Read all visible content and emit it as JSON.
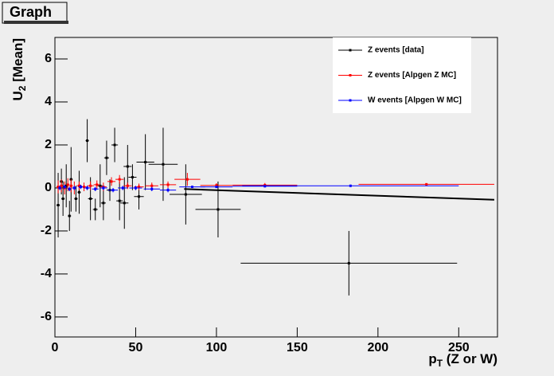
{
  "chart_data": {
    "type": "errorbar-scatter",
    "title": "Graph",
    "xlabel": {
      "main": "p",
      "sub": "T",
      "rest": " (Z or W)"
    },
    "ylabel": {
      "main": "U",
      "sub": "2",
      "rest": " [Mean]"
    },
    "xlim": [
      0,
      274
    ],
    "ylim": [
      -6.93,
      7
    ],
    "xticks": [
      0,
      50,
      100,
      150,
      200,
      250
    ],
    "yticks": [
      -6,
      -4,
      -2,
      0,
      2,
      4,
      6
    ],
    "series": [
      {
        "name": "Z events [data]",
        "color": "#000000",
        "x": [
          2,
          4,
          5,
          7,
          9,
          10,
          13,
          15,
          20,
          22,
          25,
          28,
          30,
          32,
          34,
          37,
          40,
          43,
          45,
          48,
          52,
          56,
          67,
          81,
          101,
          182
        ],
        "values": [
          -0.8,
          0.3,
          -0.5,
          0.1,
          -1.3,
          0.4,
          -0.5,
          -0.2,
          2.2,
          -0.5,
          -1,
          0.1,
          -0.7,
          1.4,
          -0.1,
          2,
          -0.6,
          -0.7,
          1,
          0.5,
          -0.4,
          1.2,
          1.1,
          -0.3,
          -1,
          -3.5
        ],
        "xerr": [
          1,
          1,
          1,
          1,
          1,
          1,
          1,
          1,
          1,
          1.5,
          1.5,
          1.5,
          1.5,
          1.5,
          2,
          2,
          2,
          2.5,
          2.5,
          2.5,
          3,
          5.5,
          9,
          10,
          14,
          67
        ],
        "yerr": [
          1.5,
          0.6,
          0.8,
          1,
          0.7,
          1.5,
          0.6,
          1,
          1,
          1,
          0.5,
          1,
          0.8,
          0.8,
          0.5,
          0.8,
          0.9,
          1.2,
          1,
          0.6,
          0.6,
          1.3,
          1.7,
          1.4,
          1.3,
          1.5
        ]
      },
      {
        "name": "Z events [Alpgen Z MC]",
        "color": "#ff0000",
        "x": [
          2,
          4,
          6,
          8,
          10,
          12,
          15,
          18,
          22,
          26,
          30,
          35,
          40,
          45,
          52,
          60,
          70,
          82,
          100,
          130,
          230
        ],
        "values": [
          0.05,
          0.1,
          0.0,
          0.15,
          0.1,
          0.0,
          0.1,
          0.05,
          0.1,
          0.15,
          0.05,
          0.3,
          0.4,
          0.1,
          0.05,
          0.1,
          0.15,
          0.4,
          0.12,
          0.13,
          0.17
        ],
        "xerr": [
          1,
          1,
          1,
          1,
          1,
          1,
          1.5,
          1.5,
          2,
          2,
          2,
          2.5,
          2.5,
          2.5,
          3,
          4,
          5,
          8,
          10,
          20,
          42
        ],
        "yerr": [
          0.3,
          0.3,
          0.3,
          0.3,
          0.3,
          0.3,
          0.2,
          0.2,
          0.2,
          0.2,
          0.2,
          0.2,
          0.2,
          0.15,
          0.15,
          0.15,
          0.15,
          0.3,
          0.1,
          0.1,
          0.05
        ]
      },
      {
        "name": "W events [Alpgen W MC]",
        "color": "#0000ff",
        "x": [
          3,
          6,
          9,
          12,
          16,
          20,
          25,
          30,
          36,
          42,
          50,
          60,
          70,
          85,
          100,
          130,
          183
        ],
        "values": [
          0.0,
          0.05,
          -0.05,
          0.0,
          0.05,
          0.0,
          -0.05,
          0.0,
          -0.1,
          0.0,
          0.0,
          -0.05,
          -0.1,
          0.05,
          0.05,
          0.08,
          0.1
        ],
        "xerr": [
          1,
          1,
          1,
          1.5,
          1.5,
          2,
          2,
          2.5,
          3,
          3,
          4,
          5,
          5,
          8,
          10,
          20,
          67
        ],
        "yerr": [
          0.1,
          0.1,
          0.1,
          0.1,
          0.1,
          0.1,
          0.1,
          0.1,
          0.1,
          0.1,
          0.1,
          0.1,
          0.1,
          0.05,
          0.05,
          0.05,
          0.05
        ]
      }
    ],
    "lines": [
      {
        "color": "#000000",
        "x": [
          80,
          272
        ],
        "values": [
          -0.05,
          -0.55
        ]
      }
    ]
  }
}
